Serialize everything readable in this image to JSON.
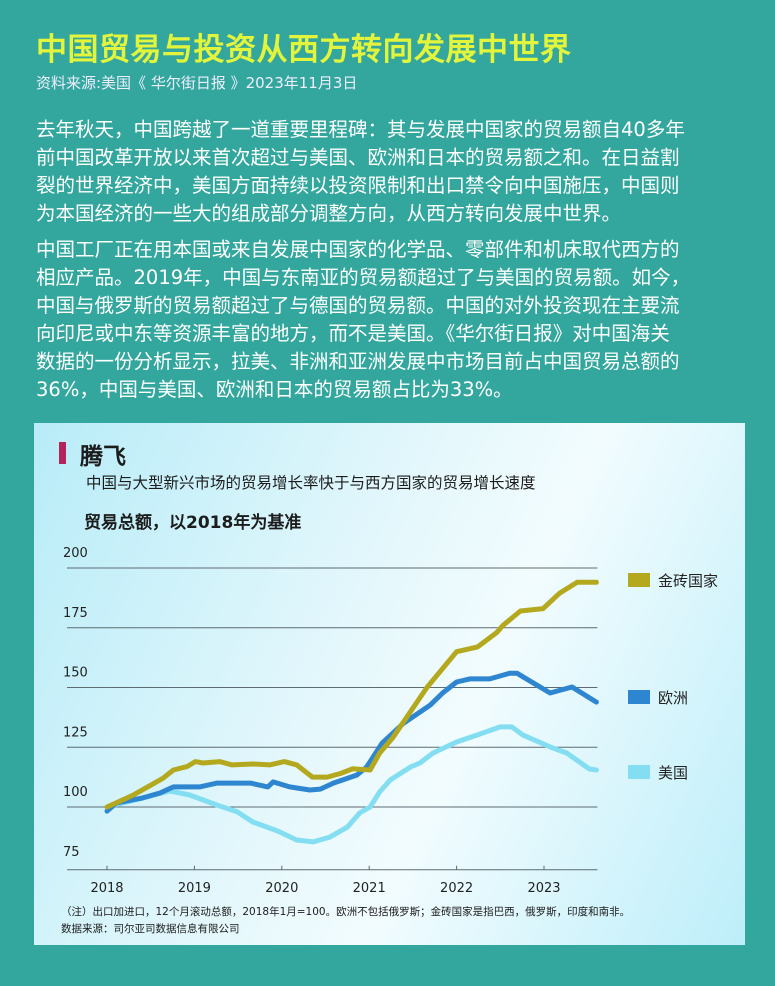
{
  "header": {
    "title": "中国贸易与投资从西方转向发展中世界",
    "source": "资料来源:美国《 华尔街日报 》2023年11月3日"
  },
  "article": {
    "paragraph1": [
      "去年秋天，中国跨越了一道重要里程碑：其与发展中国家的贸易额自40多年",
      "前中国改革开放以来首次超过与美国、欧洲和日本的贸易额之和。在日益割",
      "裂的世界经济中，美国方面持续以投资限制和出口禁令向中国施压，中国则",
      "为本国经济的一些大的组成部分调整方向，从西方转向发展中世界。"
    ],
    "paragraph2": [
      "中国工厂正在用本国或来自发展中国家的化学品、零部件和机床取代西方的",
      "相应产品。2019年，中国与东南亚的贸易额超过了与美国的贸易额。如今，",
      "中国与俄罗斯的贸易额超过了与德国的贸易额。中国的对外投资现在主要流",
      "向印尼或中东等资源丰富的地方，而不是美国。《华尔街日报》对中国海关",
      " 数据的一份分析显示，拉美、非洲和亚洲发展中市场目前占中国贸易总额的",
      "36%，中国与美国、欧洲和日本的贸易额占比为33%。"
    ]
  },
  "chart_data": {
    "type": "line",
    "title": "腾飞",
    "subtitle": "中国与大型新兴市场的贸易增长率快于与西方国家的贸易增长速度",
    "ylabel": "贸易总额，以2018年为基准",
    "xlabel": "",
    "ylim": [
      75,
      200
    ],
    "xlim": [
      2018,
      2023.6
    ],
    "yticks": [
      "75",
      "100",
      "125",
      "150",
      "175",
      "200"
    ],
    "xticks": [
      "2018",
      "2019",
      "2020",
      "2021",
      "2022",
      "2023"
    ],
    "grid": true,
    "legend_position": "right",
    "series": [
      {
        "name": "金砖国家",
        "color": "#b4a91e",
        "points": [
          [
            2018.0,
            100
          ],
          [
            2018.3,
            105
          ],
          [
            2018.64,
            112
          ],
          [
            2018.76,
            115.5
          ],
          [
            2018.92,
            117
          ],
          [
            2019.01,
            119
          ],
          [
            2019.1,
            118.4
          ],
          [
            2019.29,
            119
          ],
          [
            2019.43,
            117.6
          ],
          [
            2019.67,
            118
          ],
          [
            2019.86,
            117.6
          ],
          [
            2020.03,
            119
          ],
          [
            2020.17,
            117.6
          ],
          [
            2020.35,
            112.5
          ],
          [
            2020.52,
            112.5
          ],
          [
            2020.67,
            114
          ],
          [
            2020.81,
            116
          ],
          [
            2021.01,
            115.5
          ],
          [
            2021.12,
            122.6
          ],
          [
            2021.27,
            129
          ],
          [
            2021.66,
            150
          ],
          [
            2022.0,
            165
          ],
          [
            2022.24,
            167
          ],
          [
            2022.46,
            173
          ],
          [
            2022.53,
            176
          ],
          [
            2022.73,
            182
          ],
          [
            2022.99,
            183
          ],
          [
            2023.18,
            189.5
          ],
          [
            2023.38,
            194
          ],
          [
            2023.6,
            194
          ]
        ]
      },
      {
        "name": "欧洲",
        "color": "#2f86d0",
        "points": [
          [
            2018.0,
            98.3
          ],
          [
            2018.11,
            101.7
          ],
          [
            2018.41,
            103.8
          ],
          [
            2018.61,
            105.9
          ],
          [
            2018.76,
            108.4
          ],
          [
            2019.06,
            108.4
          ],
          [
            2019.26,
            110
          ],
          [
            2019.64,
            110
          ],
          [
            2019.84,
            108.4
          ],
          [
            2019.9,
            110.5
          ],
          [
            2020.09,
            108.4
          ],
          [
            2020.32,
            107.1
          ],
          [
            2020.44,
            107.5
          ],
          [
            2020.59,
            110
          ],
          [
            2020.86,
            113.4
          ],
          [
            2020.97,
            116.7
          ],
          [
            2021.15,
            126.8
          ],
          [
            2021.39,
            135
          ],
          [
            2021.7,
            142.7
          ],
          [
            2021.84,
            147.7
          ],
          [
            2022.0,
            152.3
          ],
          [
            2022.15,
            153.6
          ],
          [
            2022.38,
            153.6
          ],
          [
            2022.61,
            156
          ],
          [
            2022.69,
            156
          ],
          [
            2023.07,
            147.7
          ],
          [
            2023.32,
            150.2
          ],
          [
            2023.6,
            143.9
          ]
        ]
      },
      {
        "name": "美国",
        "color": "#84def2",
        "points": [
          [
            2018.0,
            100
          ],
          [
            2018.41,
            103.8
          ],
          [
            2018.72,
            106.7
          ],
          [
            2018.95,
            105
          ],
          [
            2019.26,
            100.8
          ],
          [
            2019.49,
            98
          ],
          [
            2019.67,
            93.7
          ],
          [
            2019.95,
            90
          ],
          [
            2020.17,
            86.2
          ],
          [
            2020.36,
            85.4
          ],
          [
            2020.55,
            87.4
          ],
          [
            2020.75,
            91.6
          ],
          [
            2020.89,
            97.5
          ],
          [
            2021.01,
            100
          ],
          [
            2021.12,
            106.3
          ],
          [
            2021.24,
            111.3
          ],
          [
            2021.47,
            116.7
          ],
          [
            2021.58,
            118.4
          ],
          [
            2021.73,
            122.6
          ],
          [
            2022.0,
            127.2
          ],
          [
            2022.23,
            130.1
          ],
          [
            2022.5,
            133.5
          ],
          [
            2022.63,
            133.5
          ],
          [
            2022.76,
            130.1
          ],
          [
            2023.1,
            124.7
          ],
          [
            2023.26,
            122.6
          ],
          [
            2023.52,
            115.9
          ],
          [
            2023.6,
            115.5
          ]
        ]
      }
    ],
    "note": "（注）出口加进口，12个月滚动总额，2018年1月=100。欧洲不包括俄罗斯；金砖国家是指巴西，俄罗斯，印度和南非。",
    "data_source": "数据来源：司尔亚司数据信息有限公司"
  }
}
